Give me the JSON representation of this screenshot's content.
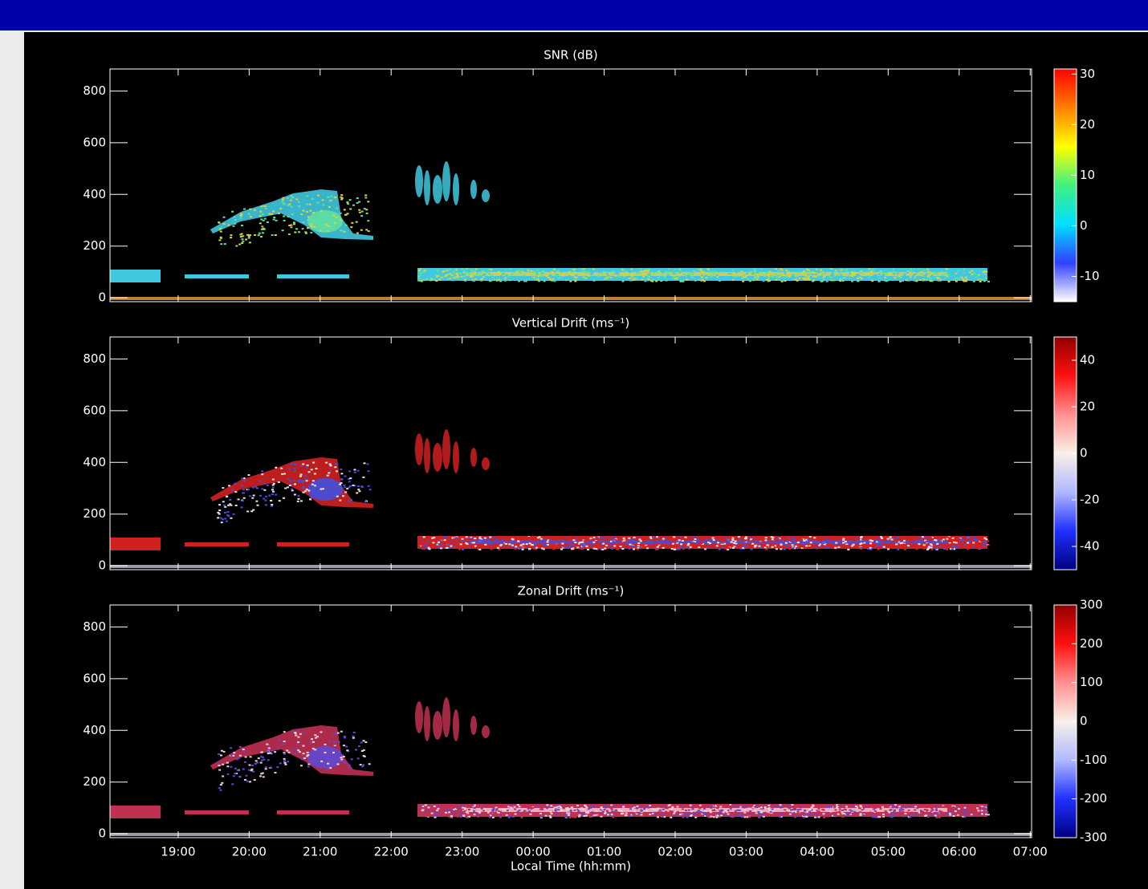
{
  "chart_data": [
    {
      "type": "heatmap",
      "title": "SNR (dB)",
      "xlim": [
        18.04,
        31.02
      ],
      "ylim": [
        -15,
        885
      ],
      "yticks": [
        0,
        200,
        400,
        600,
        800
      ],
      "clim": [
        -15,
        31
      ],
      "cticks": [
        -10,
        0,
        10,
        20,
        30
      ],
      "colormap": [
        "#ffffff",
        "#3040ff",
        "#00e0ff",
        "#40f080",
        "#ffff00",
        "#ff8000",
        "#ff0000"
      ]
    },
    {
      "type": "heatmap",
      "title": "Vertical Drift (ms⁻¹)",
      "xlim": [
        18.04,
        31.02
      ],
      "ylim": [
        -15,
        885
      ],
      "yticks": [
        0,
        200,
        400,
        600,
        800
      ],
      "clim": [
        -50,
        50
      ],
      "cticks": [
        -40,
        -20,
        0,
        20,
        40
      ],
      "colormap": [
        "#000080",
        "#2030ff",
        "#b0b8ff",
        "#f8f0e8",
        "#ff9090",
        "#ff1010",
        "#900000"
      ]
    },
    {
      "type": "heatmap",
      "title": "Zonal Drift (ms⁻¹)",
      "xlabel": "Local Time (hh:mm)",
      "xlim": [
        18.04,
        31.02
      ],
      "ylim": [
        -15,
        885
      ],
      "yticks": [
        0,
        200,
        400,
        600,
        800
      ],
      "xticks": [
        {
          "value": 19,
          "label": "19:00"
        },
        {
          "value": 20,
          "label": "20:00"
        },
        {
          "value": 21,
          "label": "21:00"
        },
        {
          "value": 22,
          "label": "22:00"
        },
        {
          "value": 23,
          "label": "23:00"
        },
        {
          "value": 24,
          "label": "00:00"
        },
        {
          "value": 25,
          "label": "01:00"
        },
        {
          "value": 26,
          "label": "02:00"
        },
        {
          "value": 27,
          "label": "03:00"
        },
        {
          "value": 28,
          "label": "04:00"
        },
        {
          "value": 29,
          "label": "05:00"
        },
        {
          "value": 30,
          "label": "06:00"
        },
        {
          "value": 31,
          "label": "07:00"
        }
      ],
      "clim": [
        -300,
        300
      ],
      "cticks": [
        -300,
        -200,
        -100,
        0,
        100,
        200,
        300
      ],
      "colormap": [
        "#000080",
        "#2030ff",
        "#b0b8ff",
        "#f8f0e8",
        "#ff9090",
        "#ff1010",
        "#900000"
      ]
    }
  ]
}
